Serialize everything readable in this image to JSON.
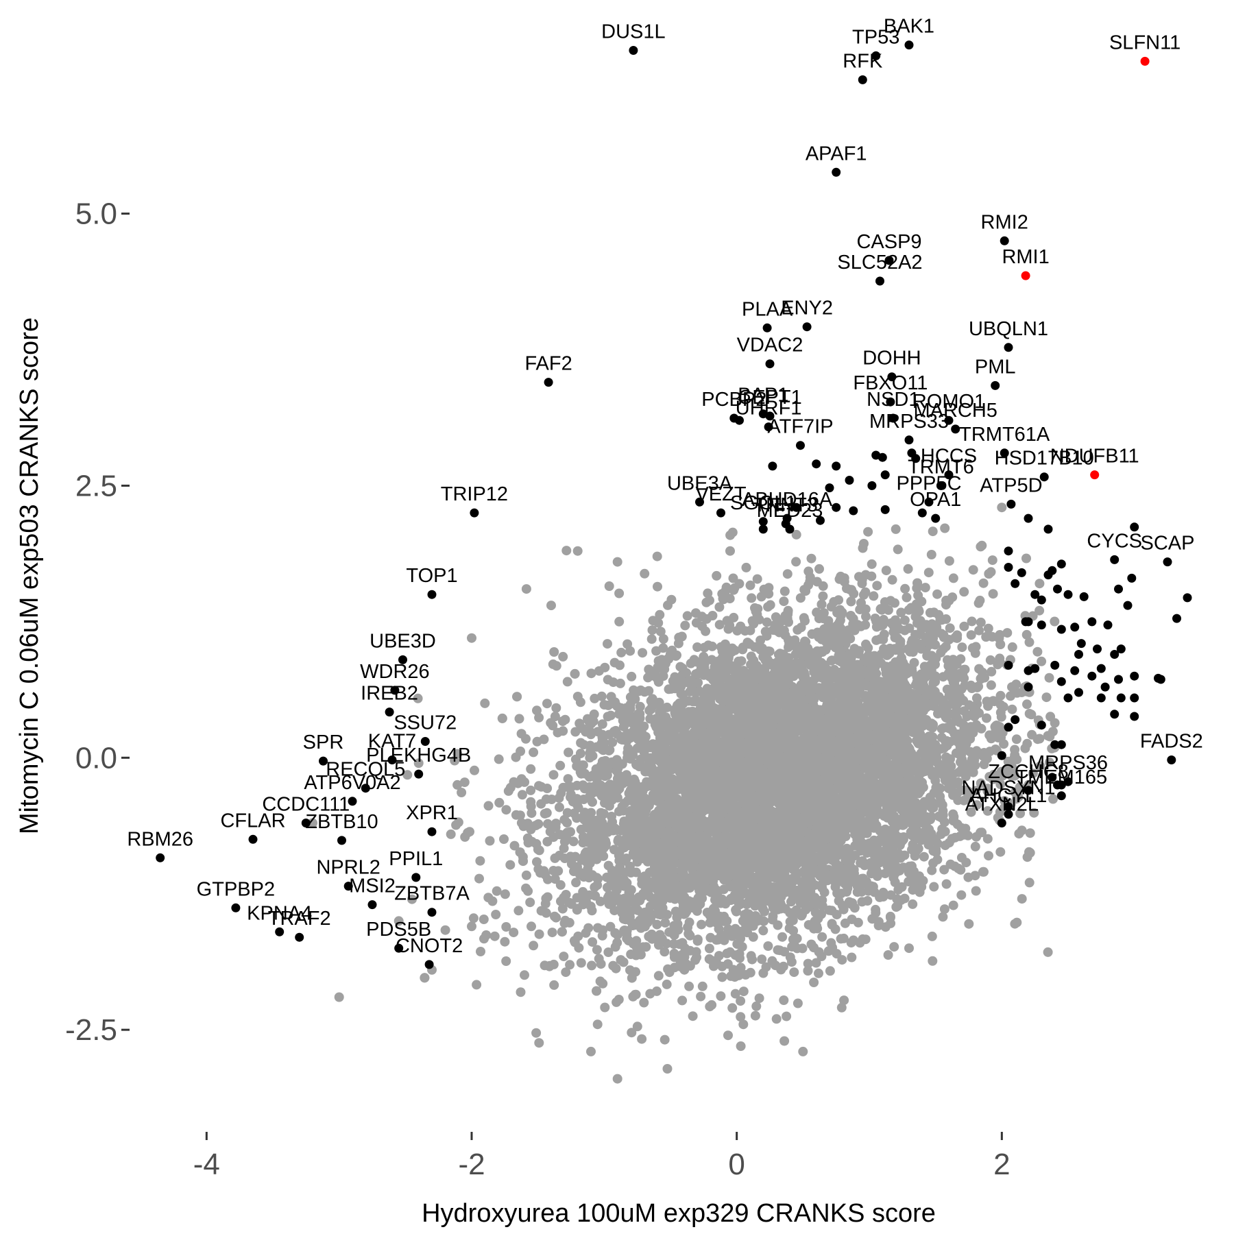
{
  "chart_data": {
    "type": "scatter",
    "xlabel": "Hydroxyurea 100uM exp329 CRANKS score",
    "ylabel": "Mitomycin C 0.06uM exp503 CRANKS score",
    "xlim": [
      -4.55,
      3.7
    ],
    "ylim": [
      -3.4,
      6.9
    ],
    "x_ticks": [
      -4,
      -2,
      0,
      2
    ],
    "x_tick_labels": [
      "-4",
      "-2",
      "0",
      "2"
    ],
    "y_ticks": [
      -2.5,
      0.0,
      2.5,
      5.0
    ],
    "y_tick_labels": [
      "-2.5",
      "0.0",
      "2.5",
      "5.0"
    ],
    "grid": false,
    "colors": {
      "background": "#ffffff",
      "background_points": "#a0a0a0",
      "highlight": "#000000",
      "emphasis": "#ff0000"
    },
    "background_cloud": {
      "color": "#a0a0a0",
      "x_center": 0.3,
      "y_center": -0.2,
      "x_sd": 0.8,
      "y_sd": 0.75,
      "count": 7000
    },
    "background_outliers": [
      {
        "x": -0.9,
        "y": -2.95
      },
      {
        "x": -1.1,
        "y": -2.7
      },
      {
        "x": -1.05,
        "y": -2.45
      },
      {
        "x": 0.5,
        "y": -2.7
      },
      {
        "x": 0.3,
        "y": -2.4
      },
      {
        "x": 0.05,
        "y": -2.45
      },
      {
        "x": -0.7,
        "y": -2.25
      },
      {
        "x": 1.3,
        "y": -1.75
      },
      {
        "x": -2.0,
        "y": 1.1
      },
      {
        "x": -1.9,
        "y": 0.5
      },
      {
        "x": -2.4,
        "y": -0.05
      },
      {
        "x": -3.0,
        "y": -2.2
      },
      {
        "x": -2.3,
        "y": -1.95
      },
      {
        "x": -0.9,
        "y": 1.8
      },
      {
        "x": -0.6,
        "y": 1.85
      },
      {
        "x": -0.05,
        "y": 1.9
      },
      {
        "x": -1.2,
        "y": 1.9
      },
      {
        "x": 0.45,
        "y": 2.05
      },
      {
        "x": 1.2,
        "y": 2.1
      },
      {
        "x": 2.0,
        "y": 2.3
      },
      {
        "x": -2.0,
        "y": -1.55
      },
      {
        "x": -1.55,
        "y": -1.55
      },
      {
        "x": 2.15,
        "y": 0.6
      },
      {
        "x": -2.55,
        "y": -1.5
      },
      {
        "x": 1.9,
        "y": -0.9
      },
      {
        "x": -3.2,
        "y": -0.6
      },
      {
        "x": -1.4,
        "y": 1.4
      },
      {
        "x": 1.85,
        "y": 1.95
      },
      {
        "x": -2.45,
        "y": -1.3
      }
    ],
    "series": [
      {
        "name": "",
        "color": "#ff0000",
        "points": [
          {
            "label": "SLFN11",
            "x": 3.08,
            "y": 6.4
          },
          {
            "label": "RMI1",
            "x": 2.18,
            "y": 4.43
          },
          {
            "label": "NDUFB11",
            "x": 2.7,
            "y": 2.6
          }
        ]
      },
      {
        "name": "",
        "color": "#000000",
        "points": [
          {
            "label": "DUS1L",
            "x": -0.78,
            "y": 6.5
          },
          {
            "label": "BAK1",
            "x": 1.3,
            "y": 6.55
          },
          {
            "label": "TP53",
            "x": 1.05,
            "y": 6.45
          },
          {
            "label": "RFK",
            "x": 0.95,
            "y": 6.23
          },
          {
            "label": "APAF1",
            "x": 0.75,
            "y": 5.38
          },
          {
            "label": "RMI2",
            "x": 2.02,
            "y": 4.75
          },
          {
            "label": "CASP9",
            "x": 1.15,
            "y": 4.57
          },
          {
            "label": "SLC52A2",
            "x": 1.08,
            "y": 4.38
          },
          {
            "label": "PLAA",
            "x": 0.23,
            "y": 3.95
          },
          {
            "label": "ENY2",
            "x": 0.53,
            "y": 3.96
          },
          {
            "label": "VDAC2",
            "x": 0.25,
            "y": 3.62
          },
          {
            "label": "UBQLN1",
            "x": 2.05,
            "y": 3.77
          },
          {
            "label": "DOHH",
            "x": 1.17,
            "y": 3.5
          },
          {
            "label": "PML",
            "x": 1.95,
            "y": 3.42
          },
          {
            "label": "FAF2",
            "x": -1.42,
            "y": 3.45
          },
          {
            "label": "FBXO11",
            "x": 1.16,
            "y": 3.27
          },
          {
            "label": "BAP1",
            "x": 0.2,
            "y": 3.16
          },
          {
            "label": "CEPT1",
            "x": 0.25,
            "y": 3.14
          },
          {
            "label": "MARCH5",
            "x": 1.65,
            "y": 3.02
          },
          {
            "label": "PCBP2",
            "x": -0.02,
            "y": 3.12
          },
          {
            "label": "UHRF1",
            "x": 0.24,
            "y": 3.04
          },
          {
            "label": "NSD1",
            "x": 1.18,
            "y": 3.12
          },
          {
            "label": "ROMO1",
            "x": 1.6,
            "y": 3.1
          },
          {
            "label": "ATF7IP",
            "x": 0.48,
            "y": 2.87
          },
          {
            "label": "MRPS33",
            "x": 1.3,
            "y": 2.92
          },
          {
            "label": "TRMT61A",
            "x": 2.02,
            "y": 2.8
          },
          {
            "label": "HCCS",
            "x": 1.6,
            "y": 2.6
          },
          {
            "label": "TRMT6",
            "x": 1.54,
            "y": 2.5
          },
          {
            "label": "ATP5D",
            "x": 2.07,
            "y": 2.33
          },
          {
            "label": "HSD17B10",
            "x": 2.32,
            "y": 2.58
          },
          {
            "label": "TRIP12",
            "x": -1.98,
            "y": 2.25
          },
          {
            "label": "UBE3A",
            "x": -0.28,
            "y": 2.35
          },
          {
            "label": "VEZT",
            "x": -0.12,
            "y": 2.25
          },
          {
            "label": "SGOL1",
            "x": 0.2,
            "y": 2.17
          },
          {
            "label": "OPA1",
            "x": 1.5,
            "y": 2.2
          },
          {
            "label": "ABHD16A",
            "x": 0.38,
            "y": 2.2
          },
          {
            "label": "PPP5C",
            "x": 1.45,
            "y": 2.35
          },
          {
            "label": "TNNT3",
            "x": 0.37,
            "y": 2.15
          },
          {
            "label": "MED23",
            "x": 0.4,
            "y": 2.1
          },
          {
            "label": "CYCS",
            "x": 2.85,
            "y": 1.82
          },
          {
            "label": "SCAP",
            "x": 3.25,
            "y": 1.8
          },
          {
            "label": "TOP1",
            "x": -2.3,
            "y": 1.5
          },
          {
            "label": "UBE3D",
            "x": -2.52,
            "y": 0.9
          },
          {
            "label": "WDR26",
            "x": -2.58,
            "y": 0.62
          },
          {
            "label": "IREB2",
            "x": -2.62,
            "y": 0.42
          },
          {
            "label": "SSU72",
            "x": -2.35,
            "y": 0.15
          },
          {
            "label": "KAT7",
            "x": -2.6,
            "y": -0.02
          },
          {
            "label": "SPR",
            "x": -3.12,
            "y": -0.03
          },
          {
            "label": "FADS2",
            "x": 3.28,
            "y": -0.02
          },
          {
            "label": "RECQL5",
            "x": -2.8,
            "y": -0.28
          },
          {
            "label": "PLEKHG4B",
            "x": -2.4,
            "y": -0.15
          },
          {
            "label": "CCDC111",
            "x": -3.25,
            "y": -0.6
          },
          {
            "label": "ATP6V0A2",
            "x": -2.9,
            "y": -0.4
          },
          {
            "label": "ZCCHC8",
            "x": 2.2,
            "y": -0.3
          },
          {
            "label": "MRPS36",
            "x": 2.5,
            "y": -0.22
          },
          {
            "label": "NADSYN1",
            "x": 2.05,
            "y": -0.45
          },
          {
            "label": "AHCYL1",
            "x": 2.05,
            "y": -0.52
          },
          {
            "label": "TMEM165",
            "x": 2.45,
            "y": -0.35
          },
          {
            "label": "ATXN2L",
            "x": 2.0,
            "y": -0.6
          },
          {
            "label": "RBM26",
            "x": -4.35,
            "y": -0.92
          },
          {
            "label": "CFLAR",
            "x": -3.65,
            "y": -0.75
          },
          {
            "label": "XPR1",
            "x": -2.3,
            "y": -0.68
          },
          {
            "label": "ZBTB10",
            "x": -2.98,
            "y": -0.76
          },
          {
            "label": "PPIL1",
            "x": -2.42,
            "y": -1.1
          },
          {
            "label": "GTPBP2",
            "x": -3.78,
            "y": -1.38
          },
          {
            "label": "NPRL2",
            "x": -2.93,
            "y": -1.18
          },
          {
            "label": "ZBTB7A",
            "x": -2.3,
            "y": -1.42
          },
          {
            "label": "KPNA4",
            "x": -3.45,
            "y": -1.6
          },
          {
            "label": "TRAF2",
            "x": -3.3,
            "y": -1.65
          },
          {
            "label": "PDS5B",
            "x": -2.55,
            "y": -1.75
          },
          {
            "label": "MSI2",
            "x": -2.75,
            "y": -1.35
          },
          {
            "label": "CNOT2",
            "x": -2.32,
            "y": -1.9
          }
        ]
      },
      {
        "name": "",
        "color": "#000000",
        "points": [
          {
            "x": 0.02,
            "y": 3.1
          },
          {
            "x": 0.27,
            "y": 2.68
          },
          {
            "x": 0.6,
            "y": 2.7
          },
          {
            "x": 0.75,
            "y": 2.68
          },
          {
            "x": 0.7,
            "y": 2.48
          },
          {
            "x": 0.75,
            "y": 2.3
          },
          {
            "x": 0.88,
            "y": 2.27
          },
          {
            "x": 1.05,
            "y": 2.78
          },
          {
            "x": 1.1,
            "y": 2.76
          },
          {
            "x": 1.32,
            "y": 2.8
          },
          {
            "x": 1.35,
            "y": 2.75
          },
          {
            "x": 1.12,
            "y": 2.6
          },
          {
            "x": 1.02,
            "y": 2.5
          },
          {
            "x": 0.85,
            "y": 2.55
          },
          {
            "x": 1.12,
            "y": 2.28
          },
          {
            "x": 0.63,
            "y": 2.18
          },
          {
            "x": 0.45,
            "y": 2.3
          },
          {
            "x": 0.2,
            "y": 2.1
          },
          {
            "x": 1.4,
            "y": 2.25
          },
          {
            "x": 2.2,
            "y": 2.2
          },
          {
            "x": 2.35,
            "y": 2.1
          },
          {
            "x": 3.0,
            "y": 2.12
          },
          {
            "x": 2.05,
            "y": 1.9
          },
          {
            "x": 2.05,
            "y": 1.75
          },
          {
            "x": 2.15,
            "y": 1.7
          },
          {
            "x": 2.35,
            "y": 1.68
          },
          {
            "x": 2.38,
            "y": 1.72
          },
          {
            "x": 2.45,
            "y": 1.78
          },
          {
            "x": 2.1,
            "y": 1.6
          },
          {
            "x": 2.25,
            "y": 1.5
          },
          {
            "x": 2.42,
            "y": 1.55
          },
          {
            "x": 2.3,
            "y": 1.45
          },
          {
            "x": 2.5,
            "y": 1.5
          },
          {
            "x": 2.62,
            "y": 1.48
          },
          {
            "x": 2.98,
            "y": 1.65
          },
          {
            "x": 2.88,
            "y": 1.55
          },
          {
            "x": 2.95,
            "y": 1.4
          },
          {
            "x": 3.4,
            "y": 1.47
          },
          {
            "x": 3.32,
            "y": 1.28
          },
          {
            "x": 2.2,
            "y": 1.25
          },
          {
            "x": 2.18,
            "y": 1.25
          },
          {
            "x": 2.3,
            "y": 1.22
          },
          {
            "x": 2.45,
            "y": 1.18
          },
          {
            "x": 2.55,
            "y": 1.2
          },
          {
            "x": 2.6,
            "y": 1.05
          },
          {
            "x": 2.68,
            "y": 1.25
          },
          {
            "x": 2.8,
            "y": 1.22
          },
          {
            "x": 2.72,
            "y": 1.0
          },
          {
            "x": 2.58,
            "y": 0.95
          },
          {
            "x": 2.9,
            "y": 1.0
          },
          {
            "x": 2.85,
            "y": 0.95
          },
          {
            "x": 2.75,
            "y": 0.82
          },
          {
            "x": 2.88,
            "y": 0.72
          },
          {
            "x": 2.05,
            "y": 0.85
          },
          {
            "x": 2.2,
            "y": 0.8
          },
          {
            "x": 2.25,
            "y": 0.82
          },
          {
            "x": 2.4,
            "y": 0.85
          },
          {
            "x": 2.55,
            "y": 0.8
          },
          {
            "x": 2.68,
            "y": 0.75
          },
          {
            "x": 2.78,
            "y": 0.65
          },
          {
            "x": 2.45,
            "y": 0.7
          },
          {
            "x": 2.2,
            "y": 0.65
          },
          {
            "x": 2.58,
            "y": 0.6
          },
          {
            "x": 2.75,
            "y": 0.55
          },
          {
            "x": 2.5,
            "y": 0.55
          },
          {
            "x": 2.9,
            "y": 0.55
          },
          {
            "x": 3.0,
            "y": 0.75
          },
          {
            "x": 3.18,
            "y": 0.73
          },
          {
            "x": 3.2,
            "y": 0.72
          },
          {
            "x": 3.0,
            "y": 0.55
          },
          {
            "x": 2.85,
            "y": 0.4
          },
          {
            "x": 3.0,
            "y": 0.38
          },
          {
            "x": 2.1,
            "y": 0.35
          },
          {
            "x": 2.3,
            "y": 0.3
          },
          {
            "x": 2.05,
            "y": 0.28
          },
          {
            "x": 2.4,
            "y": 0.12
          },
          {
            "x": 2.45,
            "y": 0.12
          },
          {
            "x": 2.0,
            "y": 0.02
          },
          {
            "x": 2.38,
            "y": -0.18
          },
          {
            "x": 2.42,
            "y": -0.25
          },
          {
            "x": 2.45,
            "y": -0.25
          }
        ]
      }
    ]
  }
}
